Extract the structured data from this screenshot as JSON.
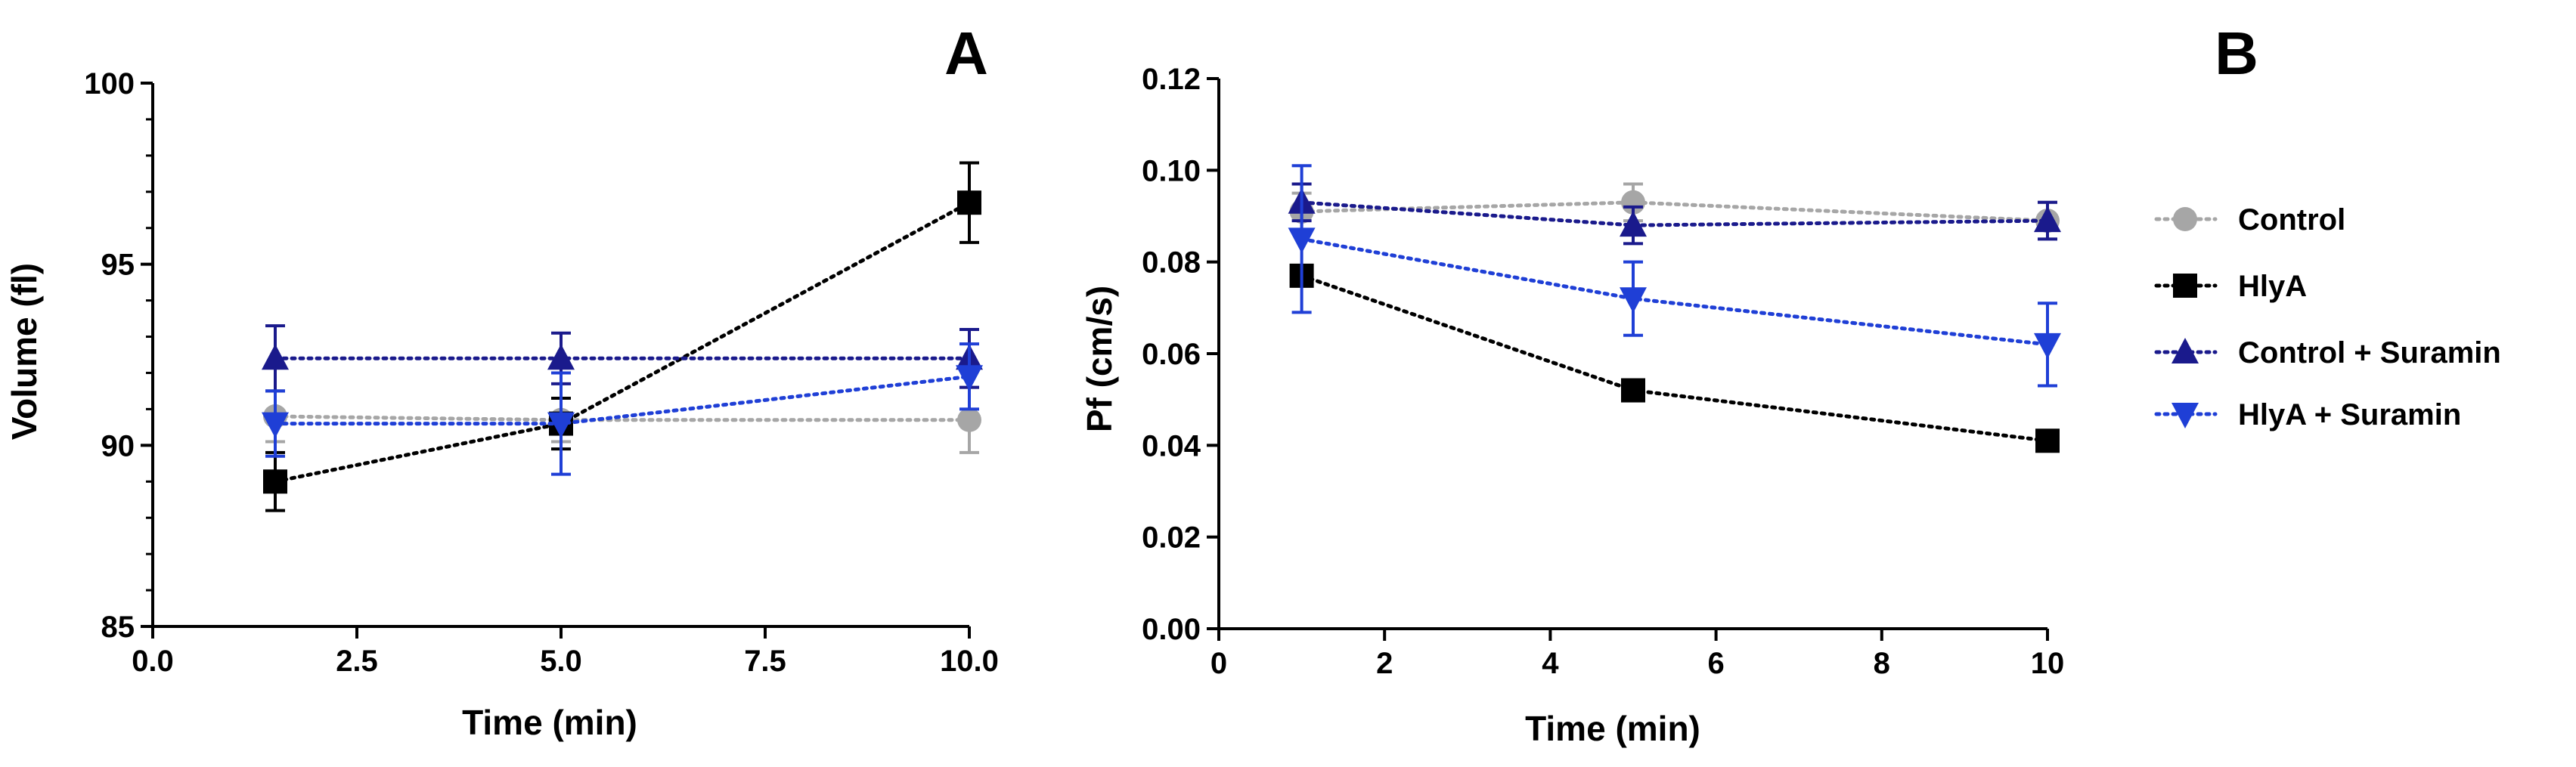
{
  "chart_data": [
    {
      "type": "line",
      "panel_label": "A",
      "xlabel": "Time (min)",
      "ylabel": "Volume (fl)",
      "xlim": [
        0,
        10
      ],
      "ylim": [
        85,
        100
      ],
      "xticks": [
        0,
        2.5,
        5,
        7.5,
        10
      ],
      "xtick_labels": [
        "0.0",
        "2.5",
        "5.0",
        "7.5",
        "10.0"
      ],
      "yticks": [
        85,
        90,
        95,
        100
      ],
      "ytick_labels": [
        "85",
        "90",
        "95",
        "100"
      ],
      "series": [
        {
          "name": "Control",
          "marker": "circle",
          "color": "#a6a6a6",
          "x": [
            1.5,
            5,
            10
          ],
          "y": [
            90.8,
            90.7,
            90.7
          ],
          "err": [
            0.7,
            0.6,
            0.9
          ]
        },
        {
          "name": "HlyA",
          "marker": "square",
          "color": "#000000",
          "x": [
            1.5,
            5,
            10
          ],
          "y": [
            89.0,
            90.6,
            96.7
          ],
          "err": [
            0.8,
            0.7,
            1.1
          ]
        },
        {
          "name": "Control + Suramin",
          "marker": "triangle-up",
          "color": "#1a1a8c",
          "x": [
            1.5,
            5,
            10
          ],
          "y": [
            92.4,
            92.4,
            92.4
          ],
          "err": [
            0.9,
            0.7,
            0.8
          ]
        },
        {
          "name": "HlyA + Suramin",
          "marker": "triangle-down",
          "color": "#1f3fd6",
          "x": [
            1.5,
            5,
            10
          ],
          "y": [
            90.6,
            90.6,
            91.9
          ],
          "err": [
            0.9,
            1.4,
            0.9
          ]
        }
      ]
    },
    {
      "type": "line",
      "panel_label": "B",
      "xlabel": "Time (min)",
      "ylabel": "Pf (cm/s)",
      "xlim": [
        0,
        10
      ],
      "ylim": [
        0,
        0.12
      ],
      "xticks": [
        0,
        2,
        4,
        6,
        8,
        10
      ],
      "xtick_labels": [
        "0",
        "2",
        "4",
        "6",
        "8",
        "10"
      ],
      "yticks": [
        0,
        0.02,
        0.04,
        0.06,
        0.08,
        0.1,
        0.12
      ],
      "ytick_labels": [
        "0.00",
        "0.02",
        "0.04",
        "0.06",
        "0.08",
        "0.10",
        "0.12"
      ],
      "legend_position": "right",
      "series": [
        {
          "name": "Control",
          "marker": "circle",
          "color": "#a6a6a6",
          "x": [
            1,
            5,
            10
          ],
          "y": [
            0.091,
            0.093,
            0.089
          ],
          "err": [
            0.004,
            0.004,
            0.004
          ]
        },
        {
          "name": "HlyA",
          "marker": "square",
          "color": "#000000",
          "x": [
            1,
            5,
            10
          ],
          "y": [
            0.077,
            0.052,
            0.041
          ],
          "err": [
            0.002,
            0.002,
            0.002
          ]
        },
        {
          "name": "Control + Suramin",
          "marker": "triangle-up",
          "color": "#1a1a8c",
          "x": [
            1,
            5,
            10
          ],
          "y": [
            0.093,
            0.088,
            0.089
          ],
          "err": [
            0.004,
            0.004,
            0.004
          ]
        },
        {
          "name": "HlyA + Suramin",
          "marker": "triangle-down",
          "color": "#1f3fd6",
          "x": [
            1,
            5,
            10
          ],
          "y": [
            0.085,
            0.072,
            0.062
          ],
          "err": [
            0.016,
            0.008,
            0.009
          ]
        }
      ]
    }
  ]
}
